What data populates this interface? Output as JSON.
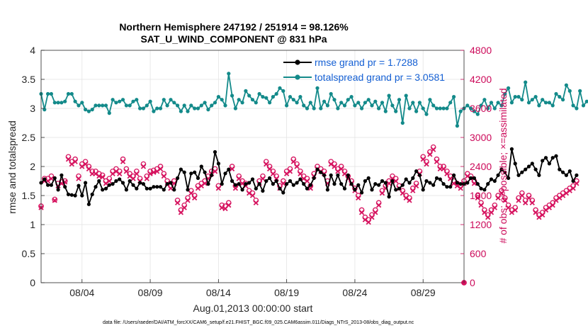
{
  "chart_data": {
    "type": "line",
    "title": "Northern Hemisphere 247192 / 251914 = 98.126%",
    "subtitle": "SAT_U_WIND_COMPONENT @ 831 hPa",
    "xlabel": "Aug.01,2013 00:00:00 start",
    "ylabel_left": "rmse and totalspread",
    "ylabel_right": "# of obs: o=possible; ×=assimilated",
    "footnote": "data file: /Users/raeder/DAI/ATM_forcXX/CAM6_setup/f.e21.FHIST_BGC.f09_025.CAM6assim.011/Diags_NTrS_2013-08/obs_diag_output.nc",
    "xlim": [
      1,
      32
    ],
    "ylim_left": [
      0,
      4
    ],
    "ylim_right": [
      0,
      4800
    ],
    "x_ticks": [
      {
        "x": 4,
        "label": "08/04"
      },
      {
        "x": 9,
        "label": "08/09"
      },
      {
        "x": 14,
        "label": "08/14"
      },
      {
        "x": 19,
        "label": "08/19"
      },
      {
        "x": 24,
        "label": "08/24"
      },
      {
        "x": 29,
        "label": "08/29"
      }
    ],
    "y_ticks_left": [
      "0",
      "0.5",
      "1",
      "1.5",
      "2",
      "2.5",
      "3",
      "3.5",
      "4"
    ],
    "y_ticks_right": [
      "0",
      "600",
      "1200",
      "1800",
      "2400",
      "3000",
      "3600",
      "4200",
      "4800"
    ],
    "grid": true,
    "legend_position": "top-right",
    "colors": {
      "rmse": "#000000",
      "spread": "#138a8a",
      "obs": "#d6135f",
      "legend_text": "#1560d4",
      "right_axis": "#cc0a5a"
    },
    "series": [
      {
        "name": "rmse grand pr = 1.7288",
        "axis": "left",
        "t0": 1.0,
        "dt": 0.25,
        "values": [
          1.72,
          1.78,
          1.68,
          1.68,
          1.8,
          1.6,
          1.85,
          1.65,
          1.52,
          1.51,
          1.5,
          1.67,
          1.5,
          1.72,
          1.35,
          1.52,
          1.65,
          1.75,
          1.6,
          1.62,
          1.68,
          1.7,
          1.75,
          1.78,
          1.72,
          1.6,
          1.75,
          1.68,
          1.62,
          1.72,
          1.7,
          1.62,
          1.62,
          1.65,
          1.65,
          1.65,
          1.6,
          1.7,
          1.72,
          1.6,
          1.8,
          1.95,
          1.9,
          1.6,
          1.88,
          1.9,
          1.8,
          2.0,
          1.9,
          1.7,
          1.85,
          2.25,
          2.05,
          1.7,
          1.88,
          1.95,
          1.75,
          1.68,
          1.7,
          1.6,
          1.7,
          1.72,
          1.78,
          1.62,
          1.7,
          1.58,
          1.75,
          1.8,
          1.7,
          1.75,
          1.62,
          1.55,
          1.7,
          1.75,
          1.68,
          1.72,
          1.78,
          1.7,
          1.62,
          1.68,
          1.8,
          1.95,
          1.9,
          1.85,
          1.6,
          1.85,
          1.7,
          1.85,
          1.7,
          1.62,
          1.85,
          1.7,
          1.6,
          1.68,
          1.55,
          1.75,
          1.8,
          1.6,
          1.7,
          1.68,
          1.75,
          1.72,
          1.48,
          1.75,
          1.6,
          1.62,
          1.68,
          1.78,
          1.72,
          1.8,
          1.92,
          1.85,
          1.6,
          1.75,
          1.72,
          1.68,
          1.8,
          1.78,
          1.7,
          1.65,
          1.65,
          1.85,
          1.72,
          1.7,
          1.7,
          1.72,
          1.8,
          1.8,
          1.7,
          1.62,
          1.6,
          1.7,
          1.78,
          1.75,
          1.85,
          1.95,
          1.9,
          1.8,
          2.3,
          2.05,
          1.85,
          1.9,
          1.95,
          2.0,
          2.05,
          1.95,
          1.85,
          2.1,
          2.15,
          2.05,
          2.15,
          2.18,
          1.95,
          1.9,
          1.85,
          1.92,
          1.75,
          1.85
        ]
      },
      {
        "name": "totalspread grand pr = 3.0581",
        "axis": "left",
        "t0": 1.0,
        "dt": 0.25,
        "values": [
          3.25,
          2.98,
          3.25,
          3.25,
          3.1,
          3.1,
          3.1,
          3.12,
          3.25,
          3.25,
          3.12,
          3.05,
          3.1,
          2.98,
          2.95,
          2.98,
          3.05,
          3.05,
          3.05,
          3.05,
          2.92,
          3.15,
          3.1,
          3.12,
          3.15,
          3.05,
          3.05,
          3.12,
          3.15,
          3.0,
          3.0,
          3.05,
          3.12,
          2.95,
          3.0,
          3.0,
          3.15,
          3.05,
          3.15,
          3.1,
          3.05,
          2.95,
          3.05,
          2.95,
          3.05,
          3.0,
          3.0,
          3.05,
          3.1,
          2.98,
          3.05,
          3.1,
          3.2,
          3.15,
          3.05,
          3.6,
          3.22,
          3.0,
          3.15,
          3.1,
          3.3,
          3.22,
          3.15,
          3.1,
          3.25,
          3.2,
          3.18,
          3.1,
          3.2,
          3.25,
          3.35,
          3.3,
          3.05,
          3.2,
          3.15,
          3.1,
          3.2,
          3.05,
          3.0,
          3.1,
          3.0,
          3.35,
          3.0,
          3.12,
          3.05,
          3.25,
          3.15,
          3.0,
          3.1,
          3.05,
          3.15,
          3.2,
          3.05,
          3.1,
          3.0,
          3.1,
          3.15,
          3.05,
          3.12,
          3.0,
          3.1,
          2.95,
          3.22,
          3.05,
          2.95,
          3.15,
          2.75,
          3.22,
          3.0,
          3.1,
          2.95,
          3.1,
          3.0,
          2.9,
          3.15,
          3.05,
          3.0,
          3.0,
          3.0,
          3.0,
          3.1,
          3.2,
          2.7,
          2.95,
          3.0,
          3.05,
          3.0,
          2.95,
          2.9,
          3.05,
          3.15,
          3.0,
          3.1,
          3.0,
          3.1,
          3.05,
          3.25,
          3.35,
          3.1,
          3.2,
          3.2,
          3.15,
          3.45,
          3.1,
          3.15,
          3.2,
          3.05,
          3.15,
          3.1,
          3.1,
          3.05,
          3.25,
          3.2,
          3.15,
          3.4,
          3.3,
          3.05,
          3.0,
          3.3,
          3.05,
          3.12,
          3.1
        ]
      },
      {
        "name": "possible",
        "marker": "o",
        "axis": "right",
        "t0": 1.0,
        "dt": 0.25,
        "values": [
          1580,
          2150,
          2150,
          2200,
          1720,
          2050,
          2080,
          2100,
          2600,
          2500,
          2550,
          2200,
          2450,
          2500,
          2400,
          2300,
          2300,
          2250,
          2220,
          2100,
          2150,
          2300,
          2350,
          2300,
          2550,
          2350,
          2250,
          2200,
          2300,
          2150,
          2450,
          2200,
          2300,
          2320,
          2350,
          2400,
          2250,
          2100,
          2000,
          2100,
          1700,
          1500,
          1600,
          1750,
          1900,
          1800,
          2000,
          2050,
          2100,
          2200,
          2300,
          2350,
          2000,
          1600,
          1580,
          1650,
          2400,
          2000,
          2200,
          2100,
          2050,
          1900,
          1850,
          1700,
          2100,
          2200,
          2500,
          2400,
          2300,
          2200,
          2000,
          2100,
          2300,
          2350,
          2550,
          2450,
          2300,
          2200,
          2150,
          2000,
          2250,
          2400,
          2350,
          2300,
          2100,
          2500,
          2450,
          2350,
          2400,
          2300,
          2200,
          2100,
          1950,
          1800,
          1500,
          1350,
          1300,
          1400,
          1500,
          1650,
          1900,
          2000,
          2100,
          2200,
          2150,
          2000,
          1900,
          1800,
          1750,
          1950,
          2050,
          2300,
          2600,
          2500,
          2700,
          2800,
          2550,
          2400,
          2400,
          2300,
          2200,
          2100,
          2050,
          2000,
          2100,
          2250,
          2200,
          2100,
          1800,
          1650,
          1500,
          1400,
          1500,
          1600,
          1800,
          1900,
          1750,
          1600,
          1500,
          1550,
          1750,
          1850,
          1700,
          1800,
          1700,
          1500,
          1400,
          1450,
          1550,
          1600,
          1650,
          1750,
          1800,
          1850,
          1900,
          1950,
          2000,
          2100
        ]
      },
      {
        "name": "assimilated",
        "marker": "x",
        "axis": "right",
        "t0": 1.0,
        "dt": 0.25,
        "values": [
          1550,
          2100,
          2100,
          2150,
          1700,
          2000,
          2050,
          2080,
          2550,
          2450,
          2500,
          2150,
          2400,
          2450,
          2350,
          2250,
          2250,
          2200,
          2180,
          2050,
          2100,
          2250,
          2300,
          2250,
          2500,
          2300,
          2200,
          2150,
          2250,
          2100,
          2400,
          2150,
          2250,
          2280,
          2300,
          2350,
          2200,
          2050,
          1950,
          2050,
          1650,
          1450,
          1550,
          1700,
          1850,
          1750,
          1950,
          2000,
          2050,
          2150,
          2250,
          2300,
          1950,
          1550,
          1530,
          1600,
          2350,
          1950,
          2150,
          2050,
          2000,
          1850,
          1800,
          1650,
          2050,
          2150,
          2450,
          2350,
          2250,
          2150,
          1950,
          2050,
          2250,
          2300,
          2500,
          2400,
          2250,
          2150,
          2100,
          1950,
          2200,
          2350,
          2300,
          2250,
          2050,
          2450,
          2400,
          2300,
          2350,
          2250,
          2150,
          2050,
          1900,
          1750,
          1450,
          1300,
          1250,
          1350,
          1450,
          1600,
          1850,
          1950,
          2050,
          2150,
          2100,
          1950,
          1850,
          1750,
          1700,
          1900,
          2000,
          2250,
          2550,
          2450,
          2650,
          2750,
          2500,
          2350,
          2350,
          2250,
          2150,
          2050,
          2000,
          1950,
          2050,
          2200,
          2150,
          2050,
          1750,
          1600,
          1450,
          1350,
          1450,
          1550,
          1750,
          1850,
          1700,
          1550,
          1450,
          1500,
          1700,
          1800,
          1650,
          1750,
          1650,
          1450,
          1350,
          1400,
          1500,
          1550,
          1600,
          1700,
          1750,
          1800,
          1850,
          1900,
          1950,
          2050
        ]
      }
    ]
  }
}
